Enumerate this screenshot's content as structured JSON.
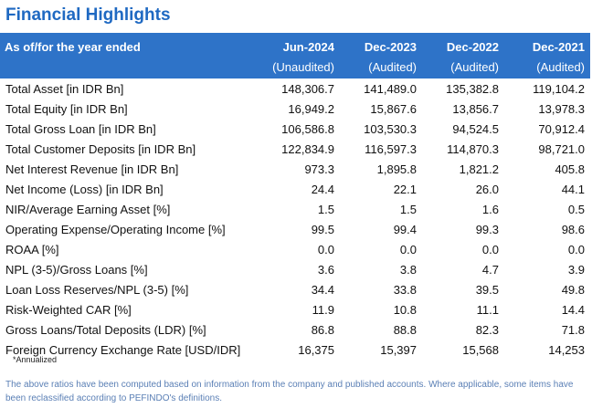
{
  "title": "Financial Highlights",
  "header": {
    "label": "As of/for the year ended",
    "periods": [
      {
        "name": "Jun-2024",
        "status": "(Unaudited)"
      },
      {
        "name": "Dec-2023",
        "status": "(Audited)"
      },
      {
        "name": "Dec-2022",
        "status": "(Audited)"
      },
      {
        "name": "Dec-2021",
        "status": "(Audited)"
      }
    ]
  },
  "rows": [
    {
      "label": "Total Asset [in IDR Bn]",
      "values": [
        "148,306.7",
        "141,489.0",
        "135,382.8",
        "119,104.2"
      ]
    },
    {
      "label": "Total Equity [in IDR Bn]",
      "values": [
        "16,949.2",
        "15,867.6",
        "13,856.7",
        "13,978.3"
      ]
    },
    {
      "label": "Total Gross Loan [in IDR Bn]",
      "values": [
        "106,586.8",
        "103,530.3",
        "94,524.5",
        "70,912.4"
      ]
    },
    {
      "label": "Total Customer Deposits [in IDR Bn]",
      "values": [
        "122,834.9",
        "116,597.3",
        "114,870.3",
        "98,721.0"
      ]
    },
    {
      "label": "Net Interest Revenue [in IDR Bn]",
      "values": [
        "973.3",
        "1,895.8",
        "1,821.2",
        "405.8"
      ]
    },
    {
      "label": "Net Income (Loss) [in IDR Bn]",
      "values": [
        "24.4",
        "22.1",
        "26.0",
        "44.1"
      ]
    },
    {
      "label": "NIR/Average Earning Asset [%]",
      "values": [
        "1.5",
        "1.5",
        "1.6",
        "0.5"
      ]
    },
    {
      "label": "Operating Expense/Operating Income [%]",
      "values": [
        "99.5",
        "99.4",
        "99.3",
        "98.6"
      ]
    },
    {
      "label": "ROAA [%]",
      "values": [
        "0.0",
        "0.0",
        "0.0",
        "0.0"
      ]
    },
    {
      "label": "NPL (3-5)/Gross Loans [%]",
      "values": [
        "3.6",
        "3.8",
        "4.7",
        "3.9"
      ]
    },
    {
      "label": "Loan Loss Reserves/NPL (3-5) [%]",
      "values": [
        "34.4",
        "33.8",
        "39.5",
        "49.8"
      ]
    },
    {
      "label": "Risk-Weighted CAR [%]",
      "values": [
        "11.9",
        "10.8",
        "11.1",
        "14.4"
      ]
    },
    {
      "label": "Gross Loans/Total Deposits (LDR) [%]",
      "values": [
        "86.8",
        "88.8",
        "82.3",
        "71.8"
      ]
    },
    {
      "label": "Foreign Currency Exchange Rate [USD/IDR]",
      "values": [
        "16,375",
        "15,397",
        "15,568",
        "14,253"
      ]
    }
  ],
  "annualized_note": "*Annualized",
  "footnote": "The above ratios have been computed based on information from the company and published accounts. Where applicable, some items have been reclassified according to PEFINDO's definitions.",
  "colors": {
    "accent": "#1f69c2",
    "header_bg": "#2e73c8",
    "footnote": "#5a7fb5"
  }
}
